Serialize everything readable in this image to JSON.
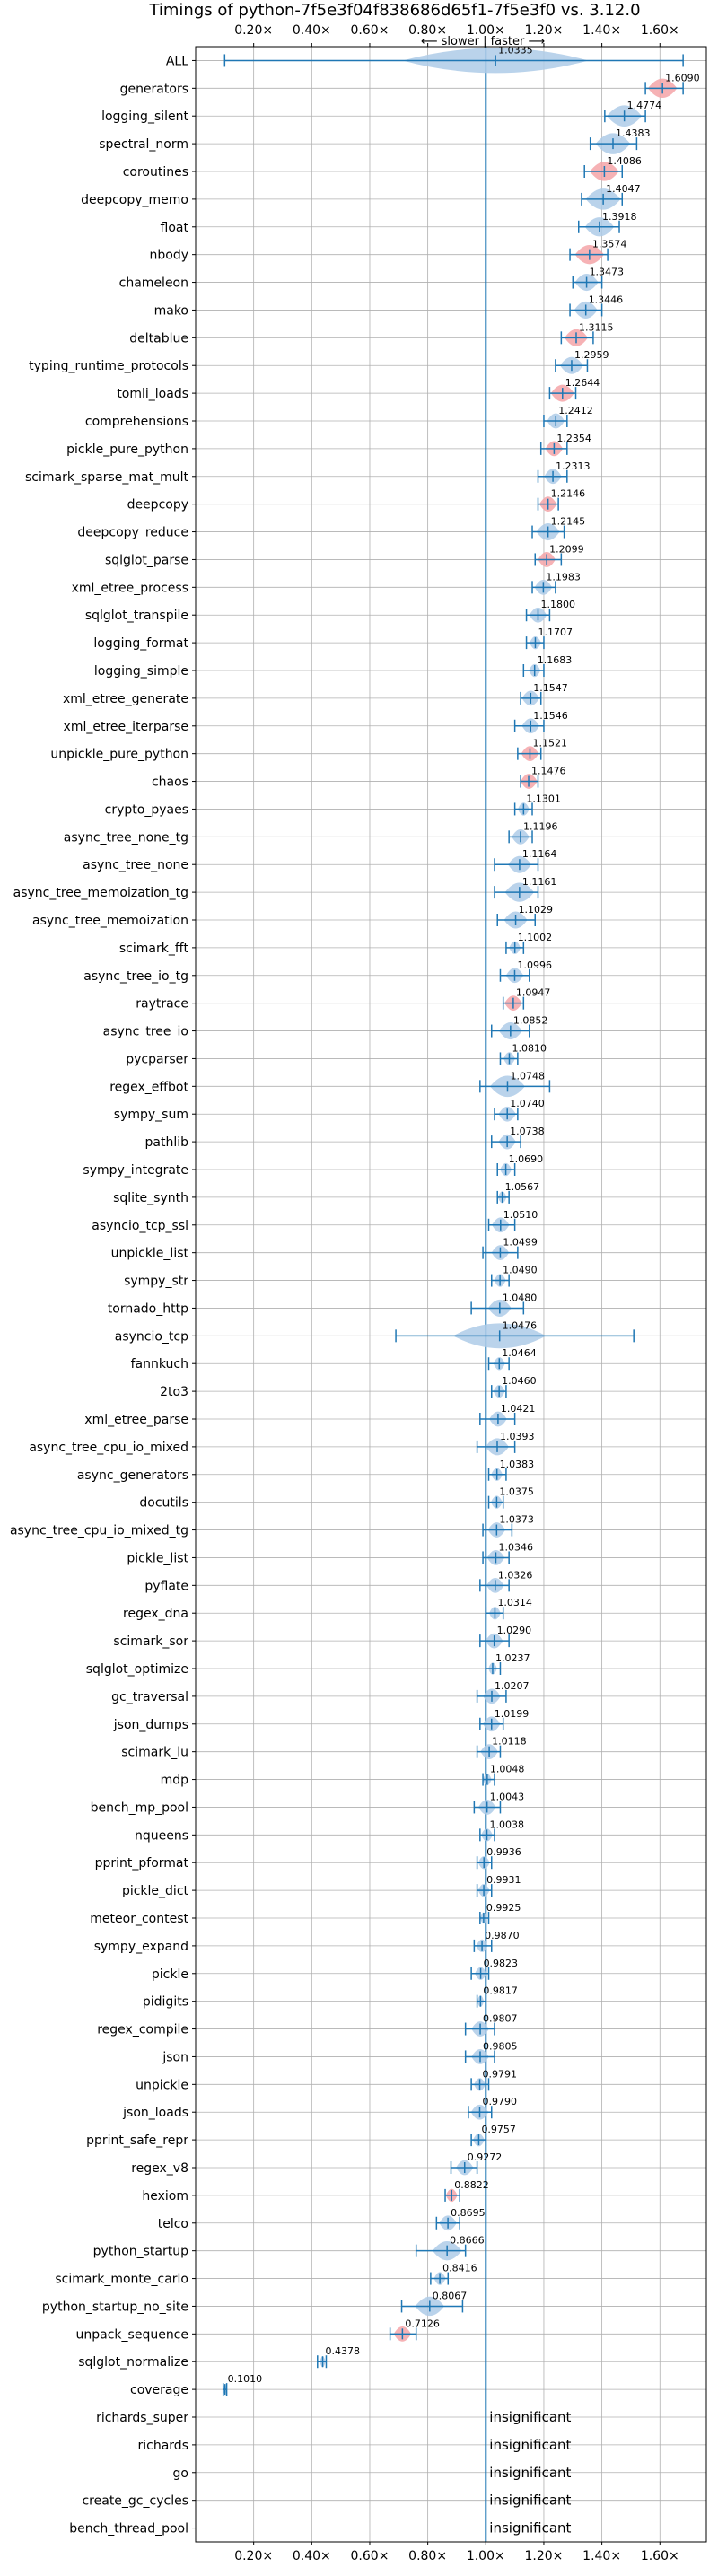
{
  "chart_data": {
    "type": "violin",
    "title": "Timings of python-7f5e3f04f838686d65f1-7f5e3f0 vs. 3.12.0",
    "direction_label": "⟵ slower  |  faster ⟶",
    "xlim": [
      0.0,
      1.76
    ],
    "reference_x": 1.0,
    "x_ticks": [
      0.2,
      0.4,
      0.6,
      0.8,
      1.0,
      1.2,
      1.4,
      1.6
    ],
    "x_tick_labels": [
      "0.20×",
      "0.40×",
      "0.60×",
      "0.80×",
      "1.00×",
      "1.20×",
      "1.40×",
      "1.60×"
    ],
    "insignificant_text": "insignificant",
    "colors": {
      "normal": "#1f77b4",
      "fill": "#aecbe8",
      "highlight": "#f4a4a8",
      "grid": "#b0b0b0"
    },
    "benchmarks": [
      {
        "name": "ALL",
        "value": 1.0335,
        "label": "1.0335",
        "min": 0.1,
        "max": 1.68,
        "spread": 0.32,
        "highlight": false
      },
      {
        "name": "generators",
        "value": 1.609,
        "label": "1.6090",
        "min": 1.55,
        "max": 1.68,
        "spread": 0.05,
        "highlight": true
      },
      {
        "name": "logging_silent",
        "value": 1.4774,
        "label": "1.4774",
        "min": 1.41,
        "max": 1.55,
        "spread": 0.06,
        "highlight": false
      },
      {
        "name": "spectral_norm",
        "value": 1.4383,
        "label": "1.4383",
        "min": 1.36,
        "max": 1.52,
        "spread": 0.06,
        "highlight": false
      },
      {
        "name": "coroutines",
        "value": 1.4086,
        "label": "1.4086",
        "min": 1.34,
        "max": 1.47,
        "spread": 0.05,
        "highlight": true
      },
      {
        "name": "deepcopy_memo",
        "value": 1.4047,
        "label": "1.4047",
        "min": 1.33,
        "max": 1.47,
        "spread": 0.06,
        "highlight": false
      },
      {
        "name": "float",
        "value": 1.3918,
        "label": "1.3918",
        "min": 1.32,
        "max": 1.46,
        "spread": 0.05,
        "highlight": false
      },
      {
        "name": "nbody",
        "value": 1.3574,
        "label": "1.3574",
        "min": 1.29,
        "max": 1.42,
        "spread": 0.05,
        "highlight": true
      },
      {
        "name": "chameleon",
        "value": 1.3473,
        "label": "1.3473",
        "min": 1.3,
        "max": 1.4,
        "spread": 0.04,
        "highlight": false
      },
      {
        "name": "mako",
        "value": 1.3446,
        "label": "1.3446",
        "min": 1.29,
        "max": 1.4,
        "spread": 0.04,
        "highlight": false
      },
      {
        "name": "deltablue",
        "value": 1.3115,
        "label": "1.3115",
        "min": 1.26,
        "max": 1.37,
        "spread": 0.04,
        "highlight": true
      },
      {
        "name": "typing_runtime_protocols",
        "value": 1.2959,
        "label": "1.2959",
        "min": 1.24,
        "max": 1.35,
        "spread": 0.04,
        "highlight": false
      },
      {
        "name": "tomli_loads",
        "value": 1.2644,
        "label": "1.2644",
        "min": 1.22,
        "max": 1.31,
        "spread": 0.04,
        "highlight": true
      },
      {
        "name": "comprehensions",
        "value": 1.2412,
        "label": "1.2412",
        "min": 1.2,
        "max": 1.28,
        "spread": 0.03,
        "highlight": false
      },
      {
        "name": "pickle_pure_python",
        "value": 1.2354,
        "label": "1.2354",
        "min": 1.19,
        "max": 1.28,
        "spread": 0.03,
        "highlight": true
      },
      {
        "name": "scimark_sparse_mat_mult",
        "value": 1.2313,
        "label": "1.2313",
        "min": 1.18,
        "max": 1.28,
        "spread": 0.03,
        "highlight": false
      },
      {
        "name": "deepcopy",
        "value": 1.2146,
        "label": "1.2146",
        "min": 1.18,
        "max": 1.25,
        "spread": 0.03,
        "highlight": true
      },
      {
        "name": "deepcopy_reduce",
        "value": 1.2145,
        "label": "1.2145",
        "min": 1.16,
        "max": 1.27,
        "spread": 0.04,
        "highlight": false
      },
      {
        "name": "sqlglot_parse",
        "value": 1.2099,
        "label": "1.2099",
        "min": 1.17,
        "max": 1.26,
        "spread": 0.03,
        "highlight": true
      },
      {
        "name": "xml_etree_process",
        "value": 1.1983,
        "label": "1.1983",
        "min": 1.16,
        "max": 1.24,
        "spread": 0.03,
        "highlight": false
      },
      {
        "name": "sqlglot_transpile",
        "value": 1.18,
        "label": "1.1800",
        "min": 1.14,
        "max": 1.22,
        "spread": 0.03,
        "highlight": false
      },
      {
        "name": "logging_format",
        "value": 1.1707,
        "label": "1.1707",
        "min": 1.14,
        "max": 1.2,
        "spread": 0.02,
        "highlight": false
      },
      {
        "name": "logging_simple",
        "value": 1.1683,
        "label": "1.1683",
        "min": 1.13,
        "max": 1.2,
        "spread": 0.02,
        "highlight": false
      },
      {
        "name": "xml_etree_generate",
        "value": 1.1547,
        "label": "1.1547",
        "min": 1.12,
        "max": 1.19,
        "spread": 0.03,
        "highlight": false
      },
      {
        "name": "xml_etree_iterparse",
        "value": 1.1546,
        "label": "1.1546",
        "min": 1.1,
        "max": 1.2,
        "spread": 0.03,
        "highlight": false
      },
      {
        "name": "unpickle_pure_python",
        "value": 1.1521,
        "label": "1.1521",
        "min": 1.11,
        "max": 1.19,
        "spread": 0.03,
        "highlight": true
      },
      {
        "name": "chaos",
        "value": 1.1476,
        "label": "1.1476",
        "min": 1.12,
        "max": 1.18,
        "spread": 0.03,
        "highlight": true
      },
      {
        "name": "crypto_pyaes",
        "value": 1.1301,
        "label": "1.1301",
        "min": 1.1,
        "max": 1.16,
        "spread": 0.02,
        "highlight": false
      },
      {
        "name": "async_tree_none_tg",
        "value": 1.1196,
        "label": "1.1196",
        "min": 1.08,
        "max": 1.16,
        "spread": 0.03,
        "highlight": false
      },
      {
        "name": "async_tree_none",
        "value": 1.1164,
        "label": "1.1164",
        "min": 1.03,
        "max": 1.18,
        "spread": 0.04,
        "highlight": false
      },
      {
        "name": "async_tree_memoization_tg",
        "value": 1.1161,
        "label": "1.1161",
        "min": 1.03,
        "max": 1.18,
        "spread": 0.05,
        "highlight": false
      },
      {
        "name": "async_tree_memoization",
        "value": 1.1029,
        "label": "1.1029",
        "min": 1.04,
        "max": 1.17,
        "spread": 0.04,
        "highlight": false
      },
      {
        "name": "scimark_fft",
        "value": 1.1002,
        "label": "1.1002",
        "min": 1.07,
        "max": 1.13,
        "spread": 0.02,
        "highlight": false
      },
      {
        "name": "async_tree_io_tg",
        "value": 1.0996,
        "label": "1.0996",
        "min": 1.05,
        "max": 1.15,
        "spread": 0.03,
        "highlight": false
      },
      {
        "name": "raytrace",
        "value": 1.0947,
        "label": "1.0947",
        "min": 1.06,
        "max": 1.13,
        "spread": 0.03,
        "highlight": true
      },
      {
        "name": "async_tree_io",
        "value": 1.0852,
        "label": "1.0852",
        "min": 1.02,
        "max": 1.15,
        "spread": 0.04,
        "highlight": false
      },
      {
        "name": "pycparser",
        "value": 1.081,
        "label": "1.0810",
        "min": 1.05,
        "max": 1.11,
        "spread": 0.02,
        "highlight": false
      },
      {
        "name": "regex_effbot",
        "value": 1.0748,
        "label": "1.0748",
        "min": 0.98,
        "max": 1.22,
        "spread": 0.06,
        "highlight": false
      },
      {
        "name": "sympy_sum",
        "value": 1.074,
        "label": "1.0740",
        "min": 1.03,
        "max": 1.11,
        "spread": 0.03,
        "highlight": false
      },
      {
        "name": "pathlib",
        "value": 1.0738,
        "label": "1.0738",
        "min": 1.02,
        "max": 1.12,
        "spread": 0.03,
        "highlight": false
      },
      {
        "name": "sympy_integrate",
        "value": 1.069,
        "label": "1.0690",
        "min": 1.04,
        "max": 1.1,
        "spread": 0.02,
        "highlight": false
      },
      {
        "name": "sqlite_synth",
        "value": 1.0567,
        "label": "1.0567",
        "min": 1.04,
        "max": 1.08,
        "spread": 0.015,
        "highlight": false
      },
      {
        "name": "asyncio_tcp_ssl",
        "value": 1.051,
        "label": "1.0510",
        "min": 1.01,
        "max": 1.1,
        "spread": 0.03,
        "highlight": false
      },
      {
        "name": "unpickle_list",
        "value": 1.0499,
        "label": "1.0499",
        "min": 0.99,
        "max": 1.11,
        "spread": 0.03,
        "highlight": false
      },
      {
        "name": "sympy_str",
        "value": 1.049,
        "label": "1.0490",
        "min": 1.02,
        "max": 1.08,
        "spread": 0.02,
        "highlight": false
      },
      {
        "name": "tornado_http",
        "value": 1.048,
        "label": "1.0480",
        "min": 0.95,
        "max": 1.13,
        "spread": 0.04,
        "highlight": false
      },
      {
        "name": "asyncio_tcp",
        "value": 1.0476,
        "label": "1.0476",
        "min": 0.69,
        "max": 1.51,
        "spread": 0.16,
        "highlight": false
      },
      {
        "name": "fannkuch",
        "value": 1.0464,
        "label": "1.0464",
        "min": 1.01,
        "max": 1.08,
        "spread": 0.02,
        "highlight": false
      },
      {
        "name": "2to3",
        "value": 1.046,
        "label": "1.0460",
        "min": 1.02,
        "max": 1.07,
        "spread": 0.02,
        "highlight": false
      },
      {
        "name": "xml_etree_parse",
        "value": 1.0421,
        "label": "1.0421",
        "min": 0.98,
        "max": 1.1,
        "spread": 0.03,
        "highlight": false
      },
      {
        "name": "async_tree_cpu_io_mixed",
        "value": 1.0393,
        "label": "1.0393",
        "min": 0.97,
        "max": 1.1,
        "spread": 0.04,
        "highlight": false
      },
      {
        "name": "async_generators",
        "value": 1.0383,
        "label": "1.0383",
        "min": 1.01,
        "max": 1.07,
        "spread": 0.02,
        "highlight": false
      },
      {
        "name": "docutils",
        "value": 1.0375,
        "label": "1.0375",
        "min": 1.01,
        "max": 1.06,
        "spread": 0.02,
        "highlight": false
      },
      {
        "name": "async_tree_cpu_io_mixed_tg",
        "value": 1.0373,
        "label": "1.0373",
        "min": 0.99,
        "max": 1.09,
        "spread": 0.03,
        "highlight": false
      },
      {
        "name": "pickle_list",
        "value": 1.0346,
        "label": "1.0346",
        "min": 0.99,
        "max": 1.08,
        "spread": 0.03,
        "highlight": false
      },
      {
        "name": "pyflate",
        "value": 1.0326,
        "label": "1.0326",
        "min": 0.98,
        "max": 1.08,
        "spread": 0.03,
        "highlight": false
      },
      {
        "name": "regex_dna",
        "value": 1.0314,
        "label": "1.0314",
        "min": 1.0,
        "max": 1.06,
        "spread": 0.02,
        "highlight": false
      },
      {
        "name": "scimark_sor",
        "value": 1.029,
        "label": "1.0290",
        "min": 0.98,
        "max": 1.08,
        "spread": 0.03,
        "highlight": false
      },
      {
        "name": "sqlglot_optimize",
        "value": 1.0237,
        "label": "1.0237",
        "min": 1.0,
        "max": 1.05,
        "spread": 0.015,
        "highlight": false
      },
      {
        "name": "gc_traversal",
        "value": 1.0207,
        "label": "1.0207",
        "min": 0.97,
        "max": 1.07,
        "spread": 0.03,
        "highlight": false
      },
      {
        "name": "json_dumps",
        "value": 1.0199,
        "label": "1.0199",
        "min": 0.98,
        "max": 1.06,
        "spread": 0.03,
        "highlight": false
      },
      {
        "name": "scimark_lu",
        "value": 1.0118,
        "label": "1.0118",
        "min": 0.97,
        "max": 1.05,
        "spread": 0.03,
        "highlight": false
      },
      {
        "name": "mdp",
        "value": 1.0048,
        "label": "1.0048",
        "min": 0.99,
        "max": 1.03,
        "spread": 0.015,
        "highlight": false
      },
      {
        "name": "bench_mp_pool",
        "value": 1.0043,
        "label": "1.0043",
        "min": 0.96,
        "max": 1.05,
        "spread": 0.03,
        "highlight": false
      },
      {
        "name": "nqueens",
        "value": 1.0038,
        "label": "1.0038",
        "min": 0.98,
        "max": 1.03,
        "spread": 0.02,
        "highlight": false
      },
      {
        "name": "pprint_pformat",
        "value": 0.9936,
        "label": "0.9936",
        "min": 0.97,
        "max": 1.02,
        "spread": 0.02,
        "highlight": false
      },
      {
        "name": "pickle_dict",
        "value": 0.9931,
        "label": "0.9931",
        "min": 0.97,
        "max": 1.02,
        "spread": 0.02,
        "highlight": false
      },
      {
        "name": "meteor_contest",
        "value": 0.9925,
        "label": "0.9925",
        "min": 0.98,
        "max": 1.01,
        "spread": 0.012,
        "highlight": false
      },
      {
        "name": "sympy_expand",
        "value": 0.987,
        "label": "0.9870",
        "min": 0.96,
        "max": 1.02,
        "spread": 0.02,
        "highlight": false
      },
      {
        "name": "pickle",
        "value": 0.9823,
        "label": "0.9823",
        "min": 0.95,
        "max": 1.01,
        "spread": 0.02,
        "highlight": false
      },
      {
        "name": "pidigits",
        "value": 0.9817,
        "label": "0.9817",
        "min": 0.97,
        "max": 1.0,
        "spread": 0.012,
        "highlight": false
      },
      {
        "name": "regex_compile",
        "value": 0.9807,
        "label": "0.9807",
        "min": 0.93,
        "max": 1.03,
        "spread": 0.03,
        "highlight": false
      },
      {
        "name": "json",
        "value": 0.9805,
        "label": "0.9805",
        "min": 0.93,
        "max": 1.03,
        "spread": 0.03,
        "highlight": false
      },
      {
        "name": "unpickle",
        "value": 0.9791,
        "label": "0.9791",
        "min": 0.95,
        "max": 1.01,
        "spread": 0.02,
        "highlight": false
      },
      {
        "name": "json_loads",
        "value": 0.979,
        "label": "0.9790",
        "min": 0.94,
        "max": 1.02,
        "spread": 0.03,
        "highlight": false
      },
      {
        "name": "pprint_safe_repr",
        "value": 0.9757,
        "label": "0.9757",
        "min": 0.95,
        "max": 1.0,
        "spread": 0.02,
        "highlight": false
      },
      {
        "name": "regex_v8",
        "value": 0.9272,
        "label": "0.9272",
        "min": 0.88,
        "max": 0.97,
        "spread": 0.03,
        "highlight": false
      },
      {
        "name": "hexiom",
        "value": 0.8822,
        "label": "0.8822",
        "min": 0.86,
        "max": 0.91,
        "spread": 0.02,
        "highlight": true
      },
      {
        "name": "telco",
        "value": 0.8695,
        "label": "0.8695",
        "min": 0.83,
        "max": 0.91,
        "spread": 0.03,
        "highlight": false
      },
      {
        "name": "python_startup",
        "value": 0.8666,
        "label": "0.8666",
        "min": 0.76,
        "max": 0.93,
        "spread": 0.05,
        "highlight": false
      },
      {
        "name": "scimark_monte_carlo",
        "value": 0.8416,
        "label": "0.8416",
        "min": 0.81,
        "max": 0.87,
        "spread": 0.02,
        "highlight": false
      },
      {
        "name": "python_startup_no_site",
        "value": 0.8067,
        "label": "0.8067",
        "min": 0.71,
        "max": 0.92,
        "spread": 0.05,
        "highlight": false
      },
      {
        "name": "unpack_sequence",
        "value": 0.7126,
        "label": "0.7126",
        "min": 0.67,
        "max": 0.76,
        "spread": 0.03,
        "highlight": true
      },
      {
        "name": "sqlglot_normalize",
        "value": 0.4378,
        "label": "0.4378",
        "min": 0.42,
        "max": 0.45,
        "spread": 0.01,
        "highlight": false
      },
      {
        "name": "coverage",
        "value": 0.101,
        "label": "0.1010",
        "min": 0.095,
        "max": 0.107,
        "spread": 0.004,
        "highlight": false
      },
      {
        "name": "richards_super",
        "value": null,
        "label": "",
        "insignificant": true
      },
      {
        "name": "richards",
        "value": null,
        "label": "",
        "insignificant": true
      },
      {
        "name": "go",
        "value": null,
        "label": "",
        "insignificant": true
      },
      {
        "name": "create_gc_cycles",
        "value": null,
        "label": "",
        "insignificant": true
      },
      {
        "name": "bench_thread_pool",
        "value": null,
        "label": "",
        "insignificant": true
      }
    ]
  }
}
